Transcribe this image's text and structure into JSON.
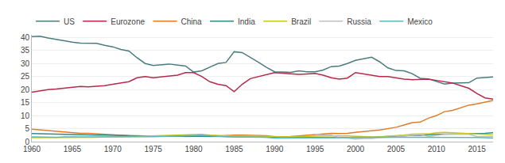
{
  "chart_data": {
    "type": "line",
    "x": [
      1960,
      1961,
      1962,
      1963,
      1964,
      1965,
      1966,
      1967,
      1968,
      1969,
      1970,
      1971,
      1972,
      1973,
      1974,
      1975,
      1976,
      1977,
      1978,
      1979,
      1980,
      1981,
      1982,
      1983,
      1984,
      1985,
      1986,
      1987,
      1988,
      1989,
      1990,
      1991,
      1992,
      1993,
      1994,
      1995,
      1996,
      1997,
      1998,
      1999,
      2000,
      2001,
      2002,
      2003,
      2004,
      2005,
      2006,
      2007,
      2008,
      2009,
      2010,
      2011,
      2012,
      2013,
      2014,
      2015,
      2016,
      2017
    ],
    "series": [
      {
        "name": "US",
        "color": "#4a7c7e",
        "values": [
          40.3,
          40.5,
          39.8,
          39.2,
          38.6,
          38.2,
          37.8,
          37.8,
          37.7,
          37.0,
          36.4,
          35.4,
          34.8,
          32.2,
          30.0,
          29.2,
          29.4,
          29.8,
          29.4,
          29.0,
          26.7,
          27.2,
          28.6,
          30.0,
          30.4,
          34.5,
          34.2,
          32.4,
          30.5,
          28.5,
          26.8,
          26.7,
          26.6,
          27.2,
          26.8,
          26.8,
          27.5,
          28.8,
          29.0,
          30.0,
          31.2,
          31.8,
          32.4,
          30.6,
          28.3,
          27.3,
          27.2,
          26.1,
          24.3,
          24.1,
          23.1,
          22.1,
          22.5,
          22.5,
          22.6,
          24.4,
          24.7,
          24.8
        ]
      },
      {
        "name": "Eurozone",
        "color": "#b5294a",
        "values": [
          19.0,
          19.5,
          20.0,
          20.2,
          20.5,
          21.0,
          21.2,
          21.0,
          21.2,
          21.5,
          22.0,
          22.5,
          23.0,
          24.5,
          25.0,
          24.5,
          24.8,
          25.0,
          25.5,
          26.5,
          26.5,
          25.0,
          23.0,
          22.0,
          21.5,
          19.2,
          22.0,
          24.2,
          25.0,
          25.8,
          26.5,
          26.3,
          26.0,
          25.8,
          26.0,
          26.2,
          25.5,
          24.5,
          24.0,
          24.4,
          26.5,
          26.0,
          25.5,
          25.0,
          25.0,
          24.5,
          24.0,
          23.8,
          23.8,
          24.0,
          23.5,
          23.0,
          22.5,
          21.5,
          20.5,
          18.5,
          16.8,
          16.3
        ]
      },
      {
        "name": "China",
        "color": "#e07b2a",
        "values": [
          4.8,
          4.5,
          4.2,
          4.0,
          3.8,
          3.5,
          3.2,
          3.2,
          3.0,
          2.8,
          2.5,
          2.4,
          2.3,
          2.2,
          2.2,
          2.3,
          2.2,
          2.1,
          2.1,
          2.0,
          2.1,
          2.1,
          2.0,
          2.2,
          2.4,
          2.5,
          2.5,
          2.4,
          2.4,
          2.3,
          1.9,
          1.9,
          2.0,
          2.2,
          2.4,
          2.6,
          2.9,
          3.2,
          3.1,
          3.2,
          3.6,
          4.0,
          4.2,
          4.5,
          4.9,
          5.5,
          6.4,
          7.3,
          7.5,
          9.0,
          10.0,
          11.5,
          12.0,
          13.0,
          14.0,
          14.5,
          15.2,
          15.8
        ]
      },
      {
        "name": "India",
        "color": "#2e8b8b",
        "values": [
          3.1,
          3.0,
          2.9,
          2.9,
          2.8,
          2.7,
          2.6,
          2.6,
          2.5,
          2.5,
          2.4,
          2.4,
          2.3,
          2.2,
          2.2,
          2.2,
          2.2,
          2.2,
          2.1,
          2.1,
          2.2,
          2.2,
          2.1,
          2.0,
          2.0,
          1.9,
          1.9,
          1.9,
          1.8,
          1.8,
          1.7,
          1.6,
          1.6,
          1.7,
          1.7,
          1.7,
          1.6,
          1.5,
          1.5,
          1.5,
          1.5,
          1.5,
          1.6,
          1.8,
          2.0,
          2.1,
          2.3,
          2.4,
          2.4,
          2.7,
          2.8,
          2.9,
          2.9,
          2.9,
          3.0,
          3.1,
          3.2,
          3.4
        ]
      },
      {
        "name": "Brazil",
        "color": "#c8c820",
        "values": [
          1.5,
          1.5,
          1.5,
          1.5,
          1.5,
          1.6,
          1.7,
          1.7,
          1.7,
          1.8,
          1.8,
          2.0,
          2.0,
          2.0,
          2.1,
          2.2,
          2.3,
          2.5,
          2.6,
          2.7,
          2.8,
          2.8,
          2.5,
          2.3,
          2.2,
          2.1,
          2.2,
          2.2,
          2.1,
          2.1,
          2.0,
          1.8,
          1.8,
          1.9,
          2.0,
          2.1,
          2.2,
          2.2,
          2.2,
          2.2,
          2.0,
          1.8,
          1.8,
          1.9,
          2.1,
          2.2,
          2.5,
          2.9,
          2.9,
          3.0,
          3.4,
          3.6,
          3.4,
          3.2,
          3.2,
          3.0,
          2.8,
          2.6
        ]
      },
      {
        "name": "Russia",
        "color": "#c0c0c0",
        "values": [
          null,
          null,
          null,
          null,
          null,
          null,
          null,
          null,
          null,
          null,
          null,
          null,
          null,
          null,
          null,
          null,
          null,
          null,
          null,
          null,
          null,
          null,
          null,
          null,
          null,
          null,
          null,
          null,
          null,
          null,
          null,
          null,
          null,
          null,
          null,
          2.8,
          2.5,
          2.5,
          1.5,
          1.4,
          1.0,
          1.2,
          1.2,
          1.5,
          1.6,
          1.8,
          2.2,
          2.6,
          2.8,
          2.0,
          2.3,
          2.8,
          2.8,
          2.9,
          2.8,
          2.0,
          2.0,
          1.9
        ]
      },
      {
        "name": "Mexico",
        "color": "#5bb8c0",
        "values": [
          1.8,
          1.7,
          1.7,
          1.7,
          1.8,
          1.8,
          1.7,
          1.7,
          1.7,
          1.7,
          1.7,
          1.7,
          1.7,
          1.7,
          1.8,
          1.9,
          2.0,
          2.1,
          2.2,
          2.3,
          2.6,
          2.5,
          2.3,
          2.0,
          1.9,
          1.8,
          1.8,
          1.7,
          1.7,
          1.7,
          1.4,
          1.4,
          1.5,
          1.5,
          1.5,
          1.5,
          1.6,
          1.6,
          1.6,
          1.6,
          1.7,
          1.7,
          1.7,
          1.7,
          1.6,
          1.7,
          1.7,
          1.7,
          1.6,
          1.7,
          1.8,
          1.8,
          1.8,
          1.8,
          1.8,
          1.6,
          1.5,
          1.4
        ]
      }
    ],
    "xlim": [
      1960,
      2017
    ],
    "xticks": [
      1960,
      1965,
      1970,
      1975,
      1980,
      1985,
      1990,
      1995,
      2000,
      2005,
      2010,
      2015
    ],
    "ylim": [
      0,
      41
    ],
    "yticks": [
      0,
      5,
      10,
      15,
      20,
      25,
      30,
      35,
      40
    ],
    "grid": true,
    "legend": "top"
  }
}
